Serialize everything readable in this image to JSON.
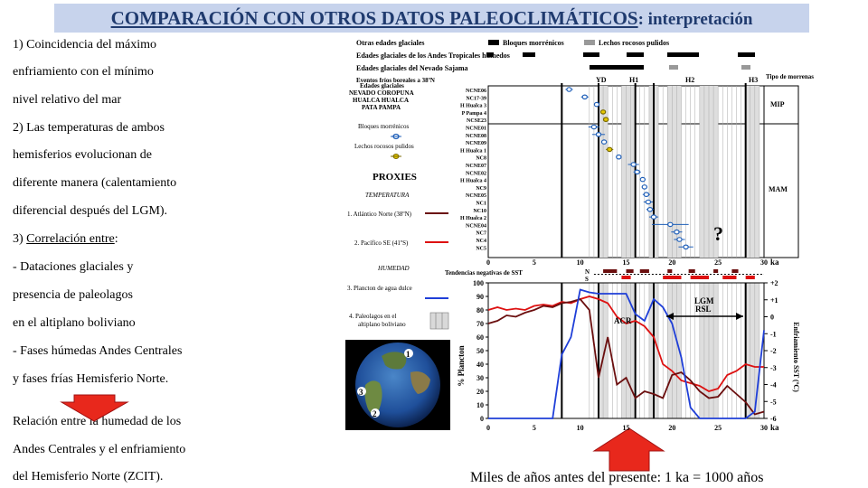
{
  "title": {
    "main": "COMPARACIÓN CON OTROS DATOS PALEOCLIMÁTICOS",
    "sub": ": interpretación"
  },
  "left_text": {
    "lines": [
      "1) Coincidencia del máximo",
      "enfriamiento con el mínimo",
      "nivel relativo del mar",
      "2) Las temperaturas de ambos",
      "hemisferios evolucionan de",
      "diferente manera (calentamiento",
      "diferencial después del LGM).",
      "3) ",
      "- Dataciones glaciales y",
      "presencia de paleolagos",
      "en el altiplano boliviano",
      "- Fases húmedas Andes Centrales",
      "y fases frías Hemisferio Norte."
    ],
    "correlation_label": "Correlación entre",
    "correlation_suffix": ":",
    "relation_lines": [
      "Relación entre la humedad de los",
      "Andes Centrales y el enfriamiento",
      "del Hemisferio Norte (ZCIT)."
    ]
  },
  "legend_top": {
    "other_glacial": "Otras edades glaciales",
    "moraines": "Bloques morrénicos",
    "polished": "Lechos rocosos pulidos",
    "tropical_andes": "Edades glaciales de los Andes Tropicales húmedos",
    "sajama": "Edades glaciales del Nevado Sajama",
    "cold_events": "Eventos fríos boreales a 38ºN",
    "events": [
      "YD",
      "H1",
      "H2",
      "H3"
    ],
    "moraine_type": "Tipo de morrenas",
    "mip": "MIP",
    "mam": "MAM"
  },
  "proxies": {
    "glacial_ages_title": "Edades glaciales",
    "sites": [
      "NEVADO COROPUNA",
      "HUALCA HUALCA",
      "PATA PAMPA"
    ],
    "moraines": "Bloques morrénicos",
    "polished": "Lechos rocosos pulidos",
    "title": "PROXIES",
    "temperature": "TEMPERATURA",
    "p1": "1. Atlántico Norte (38ºN)",
    "p2": "2. Pacífico SE (41ºS)",
    "humidity": "HUMEDAD",
    "p3": "3. Plancton de agua dulce",
    "p4_a": "4. Paleolagos  en el",
    "p4_b": "altiplano boliviano"
  },
  "samples": [
    "NCNE06",
    "NC17-39",
    "H Hualca 3",
    "P Pampa 4",
    "NCSE23",
    "NCNE01",
    "NCNE08",
    "NCNE09",
    "H Hualca 1",
    "NC8",
    "NCNE07",
    "NCNE02",
    "H Hualca 4",
    "NC9",
    "NCNE05",
    "NC1",
    "NC10",
    "H Hualca 2",
    "NCNE04",
    "NC7",
    "NC4",
    "NC5"
  ],
  "question_mark": "?",
  "sst_label": "Tendencias negativas de SST",
  "sst_ns": [
    "N",
    "S"
  ],
  "acr": "ACR",
  "lgm": "LGM",
  "rsl": "RSL",
  "ka": "ka",
  "x_ticks": [
    "0",
    "5",
    "10",
    "15",
    "20",
    "25",
    "30"
  ],
  "y_plankton_label": "% Plancton",
  "y_plankton_ticks": [
    "100",
    "90",
    "80",
    "70",
    "60",
    "50",
    "40",
    "30",
    "20",
    "10",
    "0"
  ],
  "y_sst_label": "Enfriamiento SST (ºC)",
  "y_sst_ticks": [
    "+2",
    "+1",
    "0",
    "-1",
    "-2",
    "-3",
    "-4",
    "-5",
    "-6"
  ],
  "caption": "Miles de años antes del presente: 1 ka = 1000 años",
  "colors": {
    "title_bg": "#c7d3ec",
    "title_text": "#1f3a6e",
    "red": "#dd1111",
    "dark_red": "#6b0f0f",
    "blue": "#1f3fd8",
    "arrow": "#e8281c",
    "marker_blue": "#1f5fb8",
    "marker_yellow": "#e6c800"
  },
  "globe_labels": [
    "1",
    "2",
    "3"
  ]
}
